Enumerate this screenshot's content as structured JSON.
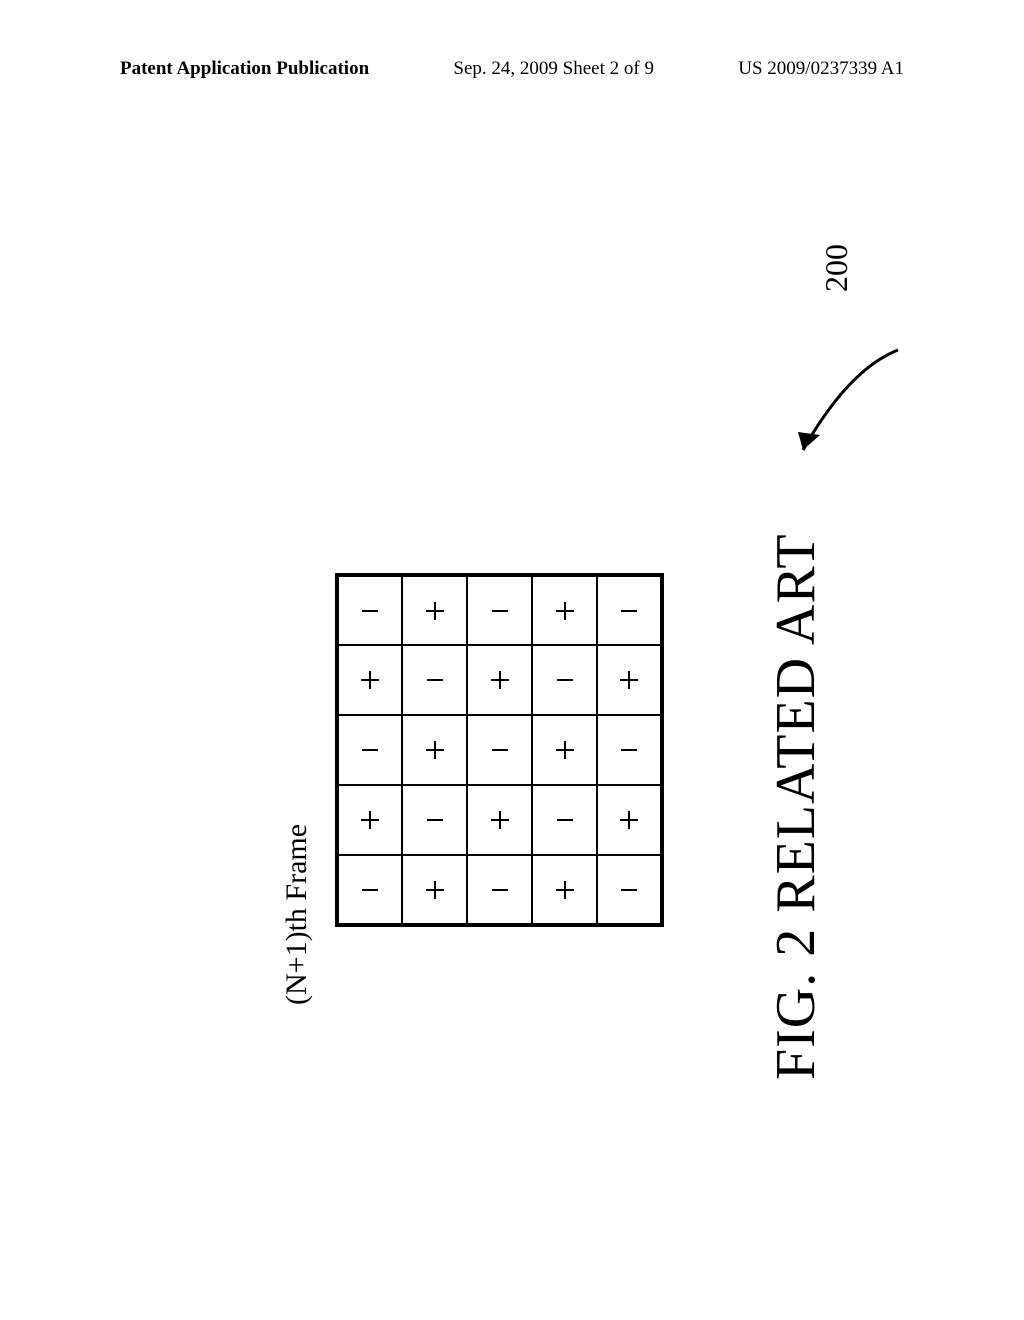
{
  "header": {
    "left": "Patent Application Publication",
    "center": "Sep. 24, 2009  Sheet 2 of 9",
    "right": "US 2009/0237339 A1"
  },
  "figure": {
    "ref_number": "200",
    "frame_label": "(N+1)th Frame",
    "caption": "FIG. 2 RELATED ART",
    "cell_size": 65,
    "border_color": "#000000",
    "symbol_size": 22,
    "symbol_stroke": 2,
    "rows": [
      [
        "−",
        "+",
        "−",
        "+",
        "−"
      ],
      [
        "+",
        "−",
        "+",
        "−",
        "+"
      ],
      [
        "−",
        "+",
        "−",
        "+",
        "−"
      ],
      [
        "+",
        "−",
        "+",
        "−",
        "+"
      ],
      [
        "−",
        "+",
        "−",
        "+",
        "−"
      ]
    ]
  },
  "text_color": "#000000",
  "background_color": "#ffffff"
}
